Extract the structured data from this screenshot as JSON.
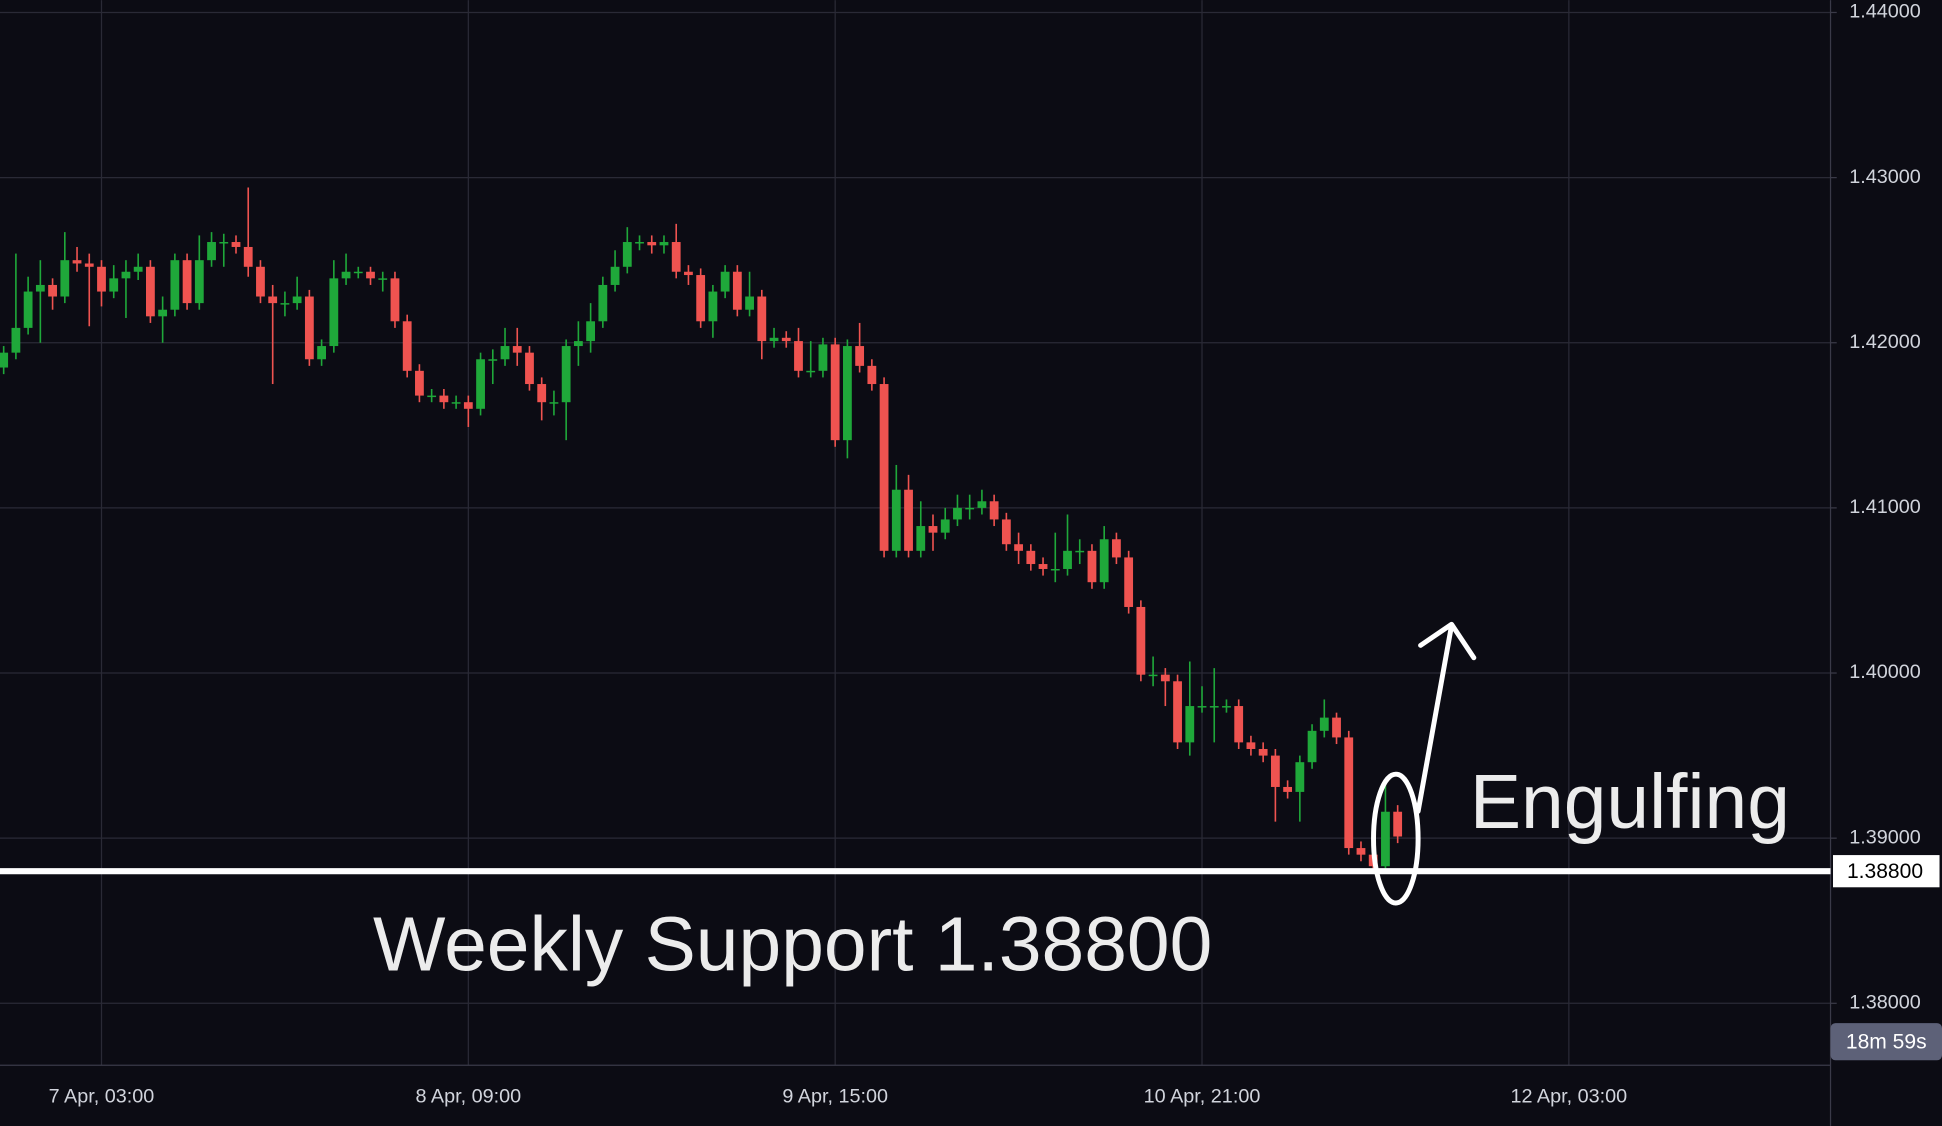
{
  "chart_data": {
    "type": "candlestick",
    "open": [
      1.4185,
      1.4194,
      1.4209,
      1.4231,
      1.4235,
      1.4228,
      1.425,
      1.4248,
      1.4246,
      1.4231,
      1.4239,
      1.4243,
      1.4246,
      1.4216,
      1.422,
      1.425,
      1.4224,
      1.425,
      1.4261,
      1.4261,
      1.4258,
      1.4246,
      1.4228,
      1.4224,
      1.4224,
      1.4228,
      1.419,
      1.4198,
      1.4239,
      1.4243,
      1.4243,
      1.4239,
      1.4239,
      1.4213,
      1.4183,
      1.4168,
      1.4168,
      1.4164,
      1.4164,
      1.416,
      1.419,
      1.419,
      1.4198,
      1.4194,
      1.4175,
      1.4164,
      1.4164,
      1.4198,
      1.4201,
      1.4213,
      1.4235,
      1.4246,
      1.4261,
      1.4261,
      1.4259,
      1.4261,
      1.4243,
      1.4241,
      1.4213,
      1.4231,
      1.4243,
      1.422,
      1.4228,
      1.4201,
      1.4203,
      1.4201,
      1.4183,
      1.4183,
      1.4199,
      1.4141,
      1.4198,
      1.4186,
      1.4175,
      1.4074,
      1.4111,
      1.4074,
      1.4089,
      1.4085,
      1.4093,
      1.41,
      1.41,
      1.4104,
      1.4093,
      1.4078,
      1.4074,
      1.4066,
      1.4063,
      1.4063,
      1.4074,
      1.4074,
      1.4055,
      1.4081,
      1.407,
      1.404,
      1.3999,
      1.3999,
      1.3995,
      1.3958,
      1.398,
      1.398,
      1.398,
      1.398,
      1.3958,
      1.3954,
      1.395,
      1.3931,
      1.3928,
      1.3946,
      1.3965,
      1.3973,
      1.3961,
      1.3894,
      1.389,
      1.3883,
      1.3916
    ],
    "high": [
      1.4198,
      1.4254,
      1.424,
      1.425,
      1.4239,
      1.4267,
      1.4258,
      1.4254,
      1.425,
      1.4247,
      1.425,
      1.4254,
      1.425,
      1.4228,
      1.4254,
      1.4254,
      1.4265,
      1.4267,
      1.4266,
      1.4265,
      1.4294,
      1.425,
      1.4235,
      1.4231,
      1.424,
      1.4232,
      1.4202,
      1.425,
      1.4254,
      1.4246,
      1.4246,
      1.4243,
      1.4243,
      1.4217,
      1.4187,
      1.4172,
      1.4172,
      1.4168,
      1.4168,
      1.4194,
      1.4196,
      1.4209,
      1.4209,
      1.4198,
      1.4179,
      1.4171,
      1.4202,
      1.4213,
      1.4224,
      1.424,
      1.4256,
      1.427,
      1.4265,
      1.4265,
      1.4265,
      1.4272,
      1.4247,
      1.4245,
      1.4235,
      1.4247,
      1.4247,
      1.4243,
      1.4232,
      1.4209,
      1.4207,
      1.4209,
      1.4201,
      1.4203,
      1.4203,
      1.4202,
      1.4212,
      1.419,
      1.4179,
      1.4126,
      1.412,
      1.4104,
      1.4096,
      1.41,
      1.4108,
      1.4108,
      1.4111,
      1.4108,
      1.4097,
      1.4085,
      1.4078,
      1.407,
      1.4085,
      1.4096,
      1.4081,
      1.4078,
      1.4089,
      1.4085,
      1.4074,
      1.4044,
      1.401,
      1.4003,
      1.3999,
      1.4007,
      1.3992,
      1.4003,
      1.3984,
      1.3984,
      1.3962,
      1.3958,
      1.3954,
      1.3935,
      1.395,
      1.3969,
      1.3984,
      1.3976,
      1.3965,
      1.3898,
      1.3894,
      1.3933,
      1.392
    ],
    "low": [
      1.4181,
      1.419,
      1.4205,
      1.42,
      1.422,
      1.4224,
      1.4243,
      1.421,
      1.4222,
      1.4227,
      1.4215,
      1.4238,
      1.4212,
      1.42,
      1.4216,
      1.422,
      1.422,
      1.4246,
      1.4246,
      1.4254,
      1.424,
      1.4224,
      1.4175,
      1.4216,
      1.422,
      1.4186,
      1.4186,
      1.4194,
      1.4235,
      1.4239,
      1.4235,
      1.4231,
      1.4209,
      1.4179,
      1.4164,
      1.4164,
      1.416,
      1.416,
      1.4149,
      1.4156,
      1.4175,
      1.4186,
      1.4186,
      1.4171,
      1.4153,
      1.4156,
      1.4141,
      1.4186,
      1.4194,
      1.4209,
      1.4231,
      1.4242,
      1.4256,
      1.4254,
      1.4254,
      1.4239,
      1.4235,
      1.4209,
      1.4203,
      1.4227,
      1.4216,
      1.4216,
      1.419,
      1.4197,
      1.4197,
      1.4179,
      1.4179,
      1.4179,
      1.4137,
      1.413,
      1.4182,
      1.4171,
      1.407,
      1.407,
      1.407,
      1.407,
      1.4074,
      1.4081,
      1.4089,
      1.4093,
      1.4096,
      1.4089,
      1.4074,
      1.4066,
      1.4062,
      1.4059,
      1.4055,
      1.4059,
      1.4066,
      1.4051,
      1.4051,
      1.4066,
      1.4036,
      1.3995,
      1.3992,
      1.398,
      1.3954,
      1.395,
      1.3976,
      1.3958,
      1.3976,
      1.3954,
      1.395,
      1.3946,
      1.391,
      1.3924,
      1.391,
      1.3942,
      1.3961,
      1.3957,
      1.389,
      1.3886,
      1.3879,
      1.3879,
      1.3897
    ],
    "close": [
      1.4194,
      1.4209,
      1.4231,
      1.4235,
      1.4228,
      1.425,
      1.4248,
      1.4246,
      1.4231,
      1.4239,
      1.4243,
      1.4246,
      1.4216,
      1.422,
      1.425,
      1.4224,
      1.425,
      1.4261,
      1.4261,
      1.4258,
      1.4246,
      1.4228,
      1.4224,
      1.4224,
      1.4228,
      1.419,
      1.4198,
      1.4239,
      1.4243,
      1.4243,
      1.4239,
      1.4239,
      1.4213,
      1.4183,
      1.4168,
      1.4168,
      1.4164,
      1.4164,
      1.416,
      1.419,
      1.419,
      1.4198,
      1.4194,
      1.4175,
      1.4164,
      1.4164,
      1.4198,
      1.4201,
      1.4213,
      1.4235,
      1.4246,
      1.4261,
      1.4261,
      1.4259,
      1.4261,
      1.4243,
      1.4241,
      1.4213,
      1.4231,
      1.4243,
      1.422,
      1.4228,
      1.4201,
      1.4203,
      1.4201,
      1.4183,
      1.4183,
      1.4199,
      1.4141,
      1.4198,
      1.4186,
      1.4175,
      1.4074,
      1.4111,
      1.4074,
      1.4089,
      1.4085,
      1.4093,
      1.41,
      1.41,
      1.4104,
      1.4093,
      1.4078,
      1.4074,
      1.4066,
      1.4063,
      1.4063,
      1.4074,
      1.4074,
      1.4055,
      1.4081,
      1.407,
      1.404,
      1.3999,
      1.3999,
      1.3995,
      1.3958,
      1.398,
      1.398,
      1.398,
      1.398,
      1.3958,
      1.3954,
      1.395,
      1.3931,
      1.3928,
      1.3946,
      1.3965,
      1.3973,
      1.3961,
      1.3894,
      1.389,
      1.3883,
      1.3916,
      1.3901
    ],
    "up_color": "#1fa83a",
    "down_color": "#ef5350",
    "xlim": [
      -0.3,
      149.4
    ],
    "xticks": [
      {
        "value": 8,
        "label": "7 Apr, 03:00"
      },
      {
        "value": 38,
        "label": "8 Apr, 09:00"
      },
      {
        "value": 68,
        "label": "9 Apr, 15:00"
      },
      {
        "value": 98,
        "label": "10 Apr, 21:00"
      },
      {
        "value": 128,
        "label": "12 Apr, 03:00"
      }
    ],
    "ylim": [
      1.37625,
      1.44075
    ],
    "yticks": [
      {
        "value": 1.38,
        "label": "1.38000"
      },
      {
        "value": 1.39,
        "label": "1.39000"
      },
      {
        "value": 1.4,
        "label": "1.40000"
      },
      {
        "value": 1.41,
        "label": "1.41000"
      },
      {
        "value": 1.42,
        "label": "1.42000"
      },
      {
        "value": 1.43,
        "label": "1.43000"
      },
      {
        "value": 1.44,
        "label": "1.44000"
      }
    ],
    "grid": true,
    "support": {
      "value": 1.388,
      "label": "1.38800"
    },
    "support_annotation": "Weekly Support 1.38800",
    "pattern_annotation": "Engulfing",
    "countdown": "18m 59s"
  }
}
